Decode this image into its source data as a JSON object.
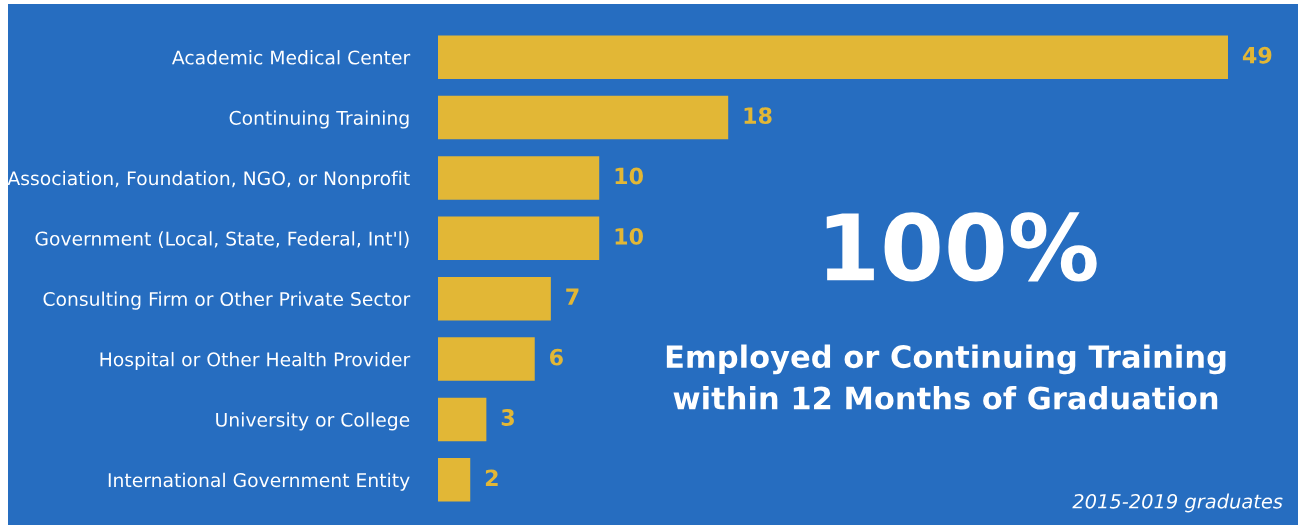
{
  "chart_data": {
    "type": "bar",
    "orientation": "horizontal",
    "categories": [
      "Academic Medical Center",
      "Continuing Training",
      "Association, Foundation, NGO, or Nonprofit",
      "Government (Local, State, Federal, Int'l)",
      "Consulting Firm or Other Private Sector",
      "Hospital or Other Health Provider",
      "University or College",
      "International Government Entity"
    ],
    "values": [
      49,
      18,
      10,
      10,
      7,
      6,
      3,
      2
    ],
    "color": "#e2b736",
    "data_labels": true,
    "tick_labels": "y",
    "grid": false,
    "legend": false,
    "annotations": [
      "100%",
      "Employed or Continuing Training\nwithin 12 Months of Graduation",
      "2015-2019 graduates"
    ]
  }
}
